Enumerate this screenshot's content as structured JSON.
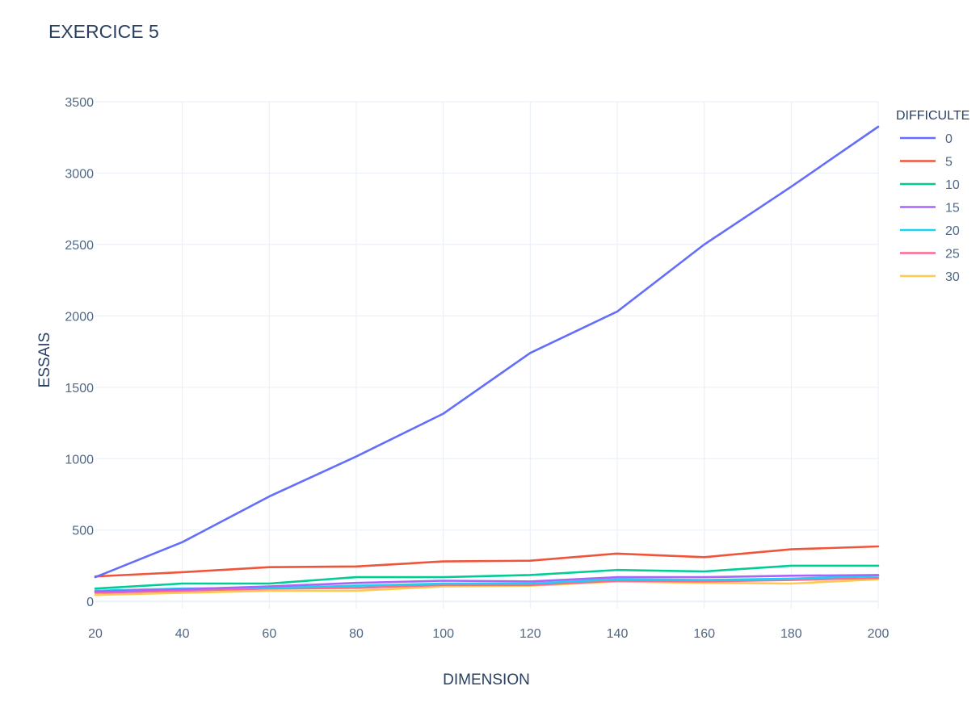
{
  "chart_data": {
    "type": "line",
    "title": "EXERCICE 5",
    "xlabel": "DIMENSION",
    "ylabel": "ESSAIS",
    "xlim": [
      20,
      200
    ],
    "ylim": [
      -50,
      3500
    ],
    "x_ticks": [
      "20",
      "40",
      "60",
      "80",
      "100",
      "120",
      "140",
      "160",
      "180",
      "200"
    ],
    "y_ticks": [
      "0",
      "500",
      "1000",
      "1500",
      "2000",
      "2500",
      "3000",
      "3500"
    ],
    "legend_title": "DIFFICULTE",
    "legend_position": "right",
    "grid": true,
    "x": [
      20,
      40,
      60,
      80,
      100,
      120,
      140,
      160,
      180,
      200
    ],
    "series": [
      {
        "name": "0",
        "color": "#636efa",
        "values": [
          170,
          415,
          735,
          1015,
          1315,
          1740,
          2030,
          2500,
          2905,
          3325
        ]
      },
      {
        "name": "5",
        "color": "#ef553b",
        "values": [
          175,
          205,
          240,
          245,
          280,
          285,
          335,
          310,
          365,
          385
        ]
      },
      {
        "name": "10",
        "color": "#00cc96",
        "values": [
          90,
          125,
          125,
          170,
          170,
          185,
          220,
          210,
          250,
          250
        ]
      },
      {
        "name": "15",
        "color": "#ab63fa",
        "values": [
          70,
          85,
          105,
          130,
          145,
          140,
          170,
          170,
          180,
          185
        ]
      },
      {
        "name": "20",
        "color": "#19d3f3",
        "values": [
          75,
          90,
          95,
          110,
          125,
          125,
          155,
          150,
          160,
          180
        ]
      },
      {
        "name": "25",
        "color": "#ff6692",
        "values": [
          60,
          75,
          90,
          95,
          115,
          115,
          145,
          140,
          150,
          165
        ]
      },
      {
        "name": "30",
        "color": "#fecb52",
        "values": [
          45,
          60,
          75,
          75,
          105,
          110,
          140,
          130,
          125,
          155
        ]
      }
    ]
  }
}
